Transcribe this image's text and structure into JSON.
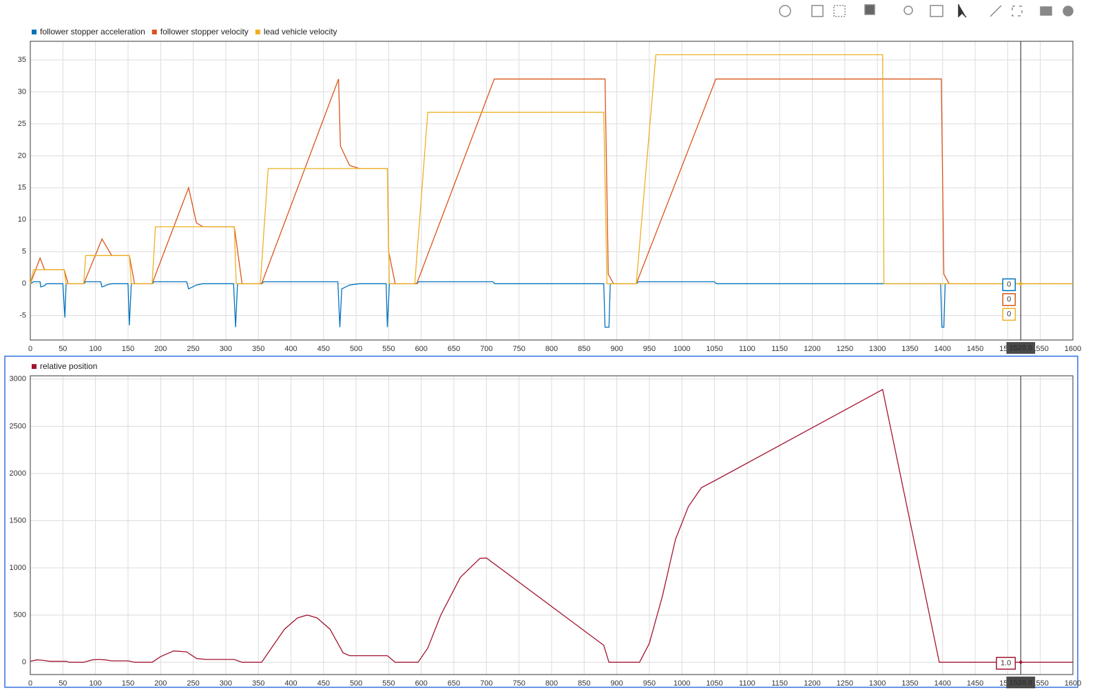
{
  "chart_data": [
    {
      "type": "line",
      "xlim": [
        0,
        1600
      ],
      "xticks": [
        0,
        50,
        100,
        150,
        200,
        250,
        300,
        350,
        400,
        450,
        500,
        550,
        600,
        650,
        700,
        750,
        800,
        850,
        900,
        950,
        1000,
        1050,
        1100,
        1150,
        1200,
        1250,
        1300,
        1350,
        1400,
        1450,
        1500,
        1550,
        1600
      ],
      "ylim": [
        -8.8,
        37.9
      ],
      "yticks": [
        -5,
        0,
        5,
        10,
        15,
        20,
        25,
        30,
        35
      ],
      "grid": true,
      "cursor": {
        "value": 1520,
        "label": "1520.0"
      },
      "series": [
        {
          "name": "follower stopper acceleration",
          "color": "#0072bd",
          "cursor_value": 0,
          "x": [
            0,
            5,
            15,
            16,
            22,
            25,
            50,
            53,
            55,
            82,
            85,
            108,
            110,
            120,
            125,
            150,
            152,
            155,
            187,
            190,
            240,
            243,
            255,
            265,
            312,
            315,
            318,
            355,
            358,
            472,
            475,
            478,
            490,
            505,
            546,
            548,
            551,
            593,
            596,
            710,
            713,
            880,
            882,
            888,
            890,
            930,
            933,
            1050,
            1053,
            1397,
            1399,
            1402,
            1404,
            1600
          ],
          "values": [
            0,
            0.3,
            0.3,
            -0.5,
            -0.3,
            0,
            0,
            -5.3,
            0,
            0,
            0.3,
            0.3,
            -0.5,
            -0.1,
            0,
            0,
            -6.5,
            0,
            0,
            0.3,
            0.3,
            -0.8,
            -0.2,
            0,
            0,
            -6.8,
            0,
            0,
            0.3,
            0.3,
            -6.8,
            -0.8,
            -0.2,
            0,
            0,
            -6.8,
            0,
            0,
            0.3,
            0.3,
            0,
            0,
            -6.8,
            -6.8,
            0,
            0,
            0.3,
            0.3,
            0,
            0,
            -6.8,
            -6.8,
            0,
            0
          ]
        },
        {
          "name": "follower stopper velocity",
          "color": "#d95319",
          "cursor_value": 0,
          "x": [
            0,
            15,
            22,
            52,
            58,
            82,
            110,
            125,
            152,
            160,
            187,
            243,
            255,
            265,
            313,
            325,
            355,
            473,
            476,
            490,
            505,
            548,
            550,
            560,
            593,
            712,
            882,
            887,
            895,
            930,
            1052,
            1398,
            1402,
            1410,
            1600
          ],
          "values": [
            0,
            4,
            2.2,
            2.2,
            0,
            0,
            7,
            4.4,
            4.4,
            0,
            0,
            15,
            9.5,
            8.9,
            8.9,
            0,
            0,
            32,
            21.5,
            18.5,
            18,
            18,
            5,
            0,
            0,
            32,
            32,
            1.5,
            0,
            0,
            32,
            32,
            1.5,
            0,
            0
          ]
        },
        {
          "name": "lead vehicle velocity",
          "color": "#edb120",
          "cursor_value": 0,
          "x": [
            0,
            5,
            52,
            55,
            82,
            85,
            152,
            155,
            187,
            192,
            313,
            316,
            353,
            365,
            548,
            551,
            590,
            610,
            880,
            885,
            930,
            960,
            1308,
            1310,
            1600
          ],
          "values": [
            0,
            2.2,
            2.2,
            0,
            0,
            4.4,
            4.4,
            0,
            0,
            8.9,
            8.9,
            0,
            0,
            18,
            18,
            0,
            0,
            26.8,
            26.8,
            0,
            0,
            35.8,
            35.8,
            0,
            0
          ]
        }
      ]
    },
    {
      "type": "line",
      "xlim": [
        0,
        1600
      ],
      "xticks": [
        0,
        50,
        100,
        150,
        200,
        250,
        300,
        350,
        400,
        450,
        500,
        550,
        600,
        650,
        700,
        750,
        800,
        850,
        900,
        950,
        1000,
        1050,
        1100,
        1150,
        1200,
        1250,
        1300,
        1350,
        1400,
        1450,
        1500,
        1550,
        1600
      ],
      "ylim": [
        -130,
        3035
      ],
      "yticks": [
        0,
        500,
        1000,
        1500,
        2000,
        2500,
        3000
      ],
      "grid": true,
      "cursor": {
        "value": 1520,
        "label": "1520.0"
      },
      "series": [
        {
          "name": "relative position",
          "color": "#a2142f",
          "cursor_value": {
            "value": 1,
            "label": "1.0"
          },
          "x": [
            0,
            10,
            20,
            30,
            55,
            60,
            82,
            95,
            105,
            115,
            125,
            150,
            160,
            187,
            200,
            220,
            240,
            255,
            270,
            313,
            325,
            355,
            370,
            390,
            410,
            425,
            440,
            460,
            480,
            490,
            548,
            560,
            595,
            610,
            630,
            660,
            690,
            700,
            880,
            888,
            935,
            950,
            970,
            990,
            1010,
            1030,
            1052,
            1308,
            1395,
            1600
          ],
          "values": [
            10,
            25,
            20,
            10,
            10,
            0,
            0,
            25,
            30,
            25,
            15,
            15,
            0,
            0,
            60,
            120,
            110,
            40,
            30,
            30,
            0,
            0,
            150,
            350,
            470,
            500,
            470,
            350,
            100,
            70,
            70,
            0,
            0,
            150,
            500,
            900,
            1100,
            1105,
            180,
            0,
            0,
            200,
            700,
            1300,
            1650,
            1850,
            1930,
            2890,
            0,
            0
          ]
        }
      ]
    }
  ]
}
